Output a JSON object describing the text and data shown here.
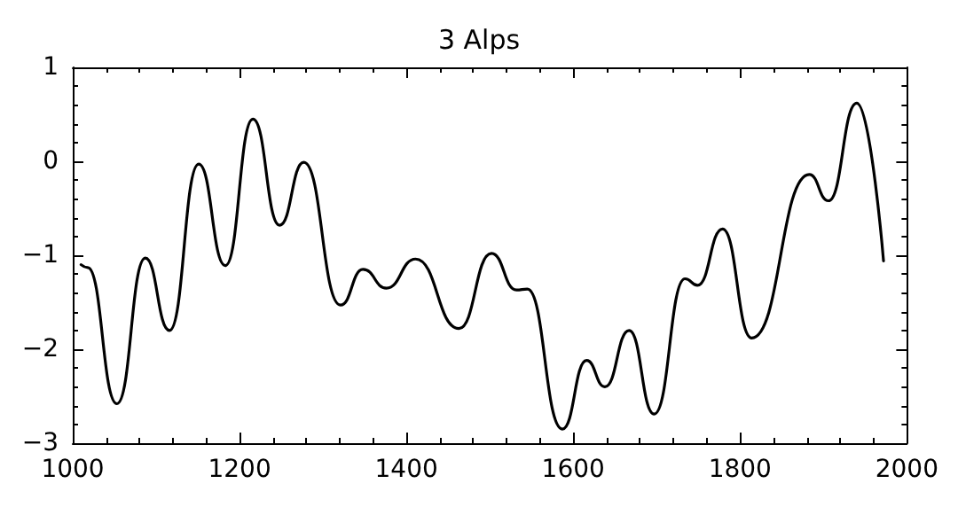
{
  "chart_data": {
    "type": "line",
    "title": "3 Alps",
    "x": [
      1010,
      1018,
      1053,
      1087,
      1116,
      1151,
      1183,
      1216,
      1248,
      1277,
      1321,
      1348,
      1376,
      1411,
      1463,
      1502,
      1532,
      1545,
      1587,
      1616,
      1638,
      1667,
      1697,
      1734,
      1749,
      1779,
      1814,
      1883,
      1906,
      1940,
      1972
    ],
    "series": [
      {
        "color": "#000000",
        "values": [
          -1.1,
          -1.13,
          -2.58,
          -1.03,
          -1.8,
          -0.03,
          -1.11,
          0.45,
          -0.68,
          -0.01,
          -1.53,
          -1.15,
          -1.35,
          -1.04,
          -1.78,
          -0.98,
          -1.37,
          -1.36,
          -2.85,
          -2.12,
          -2.4,
          -1.8,
          -2.69,
          -1.25,
          -1.32,
          -0.72,
          -1.88,
          -0.14,
          -0.42,
          0.62,
          -1.06
        ]
      }
    ],
    "xlim": [
      1000,
      2000
    ],
    "xticks": [
      1000,
      1200,
      1400,
      1600,
      1800,
      2000
    ],
    "ylim": [
      -3,
      1
    ],
    "yticks": [
      -3,
      -2,
      -1,
      0,
      1
    ],
    "marker": "none",
    "line_style": "solid"
  }
}
